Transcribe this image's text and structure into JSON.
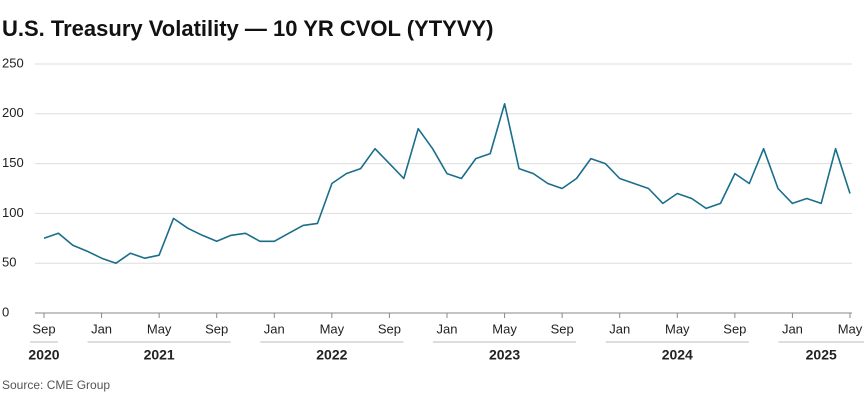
{
  "chart_data": {
    "type": "line",
    "title": "U.S. Treasury Volatility — 10 YR CVOL (YTYVY)",
    "source": "Source: CME Group",
    "x": [
      "2020-09",
      "2020-10",
      "2020-11",
      "2020-12",
      "2021-01",
      "2021-02",
      "2021-03",
      "2021-04",
      "2021-05",
      "2021-06",
      "2021-07",
      "2021-08",
      "2021-09",
      "2021-10",
      "2021-11",
      "2021-12",
      "2022-01",
      "2022-02",
      "2022-03",
      "2022-04",
      "2022-05",
      "2022-06",
      "2022-07",
      "2022-08",
      "2022-09",
      "2022-10",
      "2022-11",
      "2022-12",
      "2023-01",
      "2023-02",
      "2023-03",
      "2023-04",
      "2023-05",
      "2023-06",
      "2023-07",
      "2023-08",
      "2023-09",
      "2023-10",
      "2023-11",
      "2023-12",
      "2024-01",
      "2024-02",
      "2024-03",
      "2024-04",
      "2024-05",
      "2024-06",
      "2024-07",
      "2024-08",
      "2024-09",
      "2024-10",
      "2024-11",
      "2024-12",
      "2025-01",
      "2025-02",
      "2025-03",
      "2025-04",
      "2025-05"
    ],
    "series": [
      {
        "name": "10 YR CVOL",
        "color": "#1a6e8a",
        "values": [
          75,
          80,
          68,
          62,
          55,
          50,
          60,
          55,
          58,
          95,
          85,
          78,
          72,
          78,
          80,
          72,
          72,
          80,
          88,
          90,
          130,
          140,
          145,
          165,
          150,
          135,
          185,
          165,
          140,
          135,
          155,
          160,
          210,
          145,
          140,
          130,
          125,
          135,
          155,
          150,
          135,
          130,
          125,
          110,
          120,
          115,
          105,
          110,
          140,
          130,
          165,
          125,
          110,
          115,
          110,
          165,
          120
        ]
      }
    ],
    "xticks": [
      {
        "value": "2020-09",
        "label": "Sep"
      },
      {
        "value": "2021-01",
        "label": "Jan"
      },
      {
        "value": "2021-05",
        "label": "May"
      },
      {
        "value": "2021-09",
        "label": "Sep"
      },
      {
        "value": "2022-01",
        "label": "Jan"
      },
      {
        "value": "2022-05",
        "label": "May"
      },
      {
        "value": "2022-09",
        "label": "Sep"
      },
      {
        "value": "2023-01",
        "label": "Jan"
      },
      {
        "value": "2023-05",
        "label": "May"
      },
      {
        "value": "2023-09",
        "label": "Sep"
      },
      {
        "value": "2024-01",
        "label": "Jan"
      },
      {
        "value": "2024-05",
        "label": "May"
      },
      {
        "value": "2024-09",
        "label": "Sep"
      },
      {
        "value": "2025-01",
        "label": "Jan"
      },
      {
        "value": "2025-05",
        "label": "May"
      }
    ],
    "year_labels": [
      "2020",
      "2021",
      "2022",
      "2023",
      "2024",
      "2025"
    ],
    "ylim": [
      0,
      250
    ],
    "yticks": [
      0,
      50,
      100,
      150,
      200,
      250
    ],
    "grid": true
  }
}
